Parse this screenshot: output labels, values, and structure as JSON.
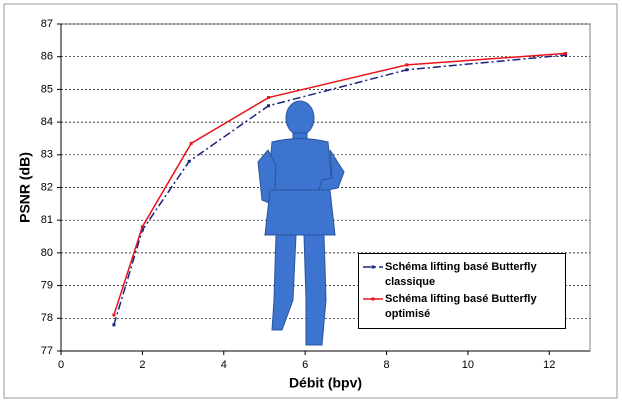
{
  "chart_data": {
    "type": "line",
    "xlabel": "Débit (bpv)",
    "ylabel": "PSNR (dB)",
    "xlim": [
      0,
      13
    ],
    "ylim": [
      77,
      87
    ],
    "xticks": [
      0,
      2,
      4,
      6,
      8,
      10,
      12
    ],
    "yticks": [
      77,
      78,
      79,
      80,
      81,
      82,
      83,
      84,
      85,
      86,
      87
    ],
    "grid": true,
    "legend": "lower-right",
    "series": [
      {
        "name": "Schéma lifting basé Butterfly classique",
        "color": "#1a237e",
        "dash": "dashdot",
        "x": [
          1.3,
          2,
          3.15,
          5.1,
          8.5,
          12.4
        ],
        "values": [
          77.8,
          80.7,
          82.8,
          84.5,
          85.6,
          86.05
        ]
      },
      {
        "name": "Schéma lifting basé Butterfly optimisé",
        "color": "#e8141b",
        "dash": "solid",
        "x": [
          1.3,
          2,
          3.2,
          5.1,
          8.5,
          12.4
        ],
        "values": [
          78.1,
          80.8,
          83.35,
          84.75,
          85.75,
          86.1
        ]
      }
    ]
  }
}
